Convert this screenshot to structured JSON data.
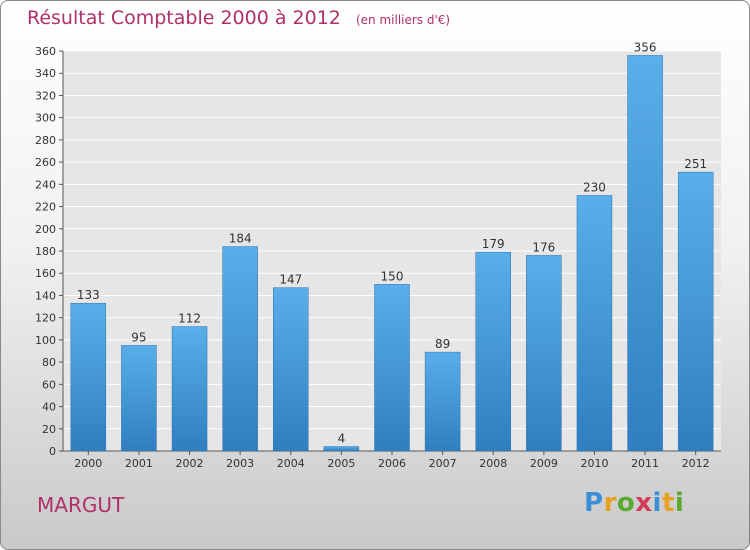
{
  "chart_data": {
    "type": "bar",
    "title": "Résultat Comptable 2000 à 2012",
    "subtitle": "(en milliers d'€)",
    "categories": [
      "2000",
      "2001",
      "2002",
      "2003",
      "2004",
      "2005",
      "2006",
      "2007",
      "2008",
      "2009",
      "2010",
      "2011",
      "2012"
    ],
    "values": [
      133,
      95,
      112,
      184,
      147,
      4,
      150,
      89,
      179,
      176,
      230,
      356,
      251
    ],
    "ylim": [
      0,
      360
    ],
    "yticks": [
      0,
      20,
      40,
      60,
      80,
      100,
      120,
      140,
      160,
      180,
      200,
      220,
      240,
      260,
      280,
      300,
      320,
      340,
      360
    ],
    "grid": true,
    "bar_color": "#4a9ee0"
  },
  "footer": {
    "commune": "MARGUT"
  },
  "logo": {
    "text": "Proxiti"
  }
}
